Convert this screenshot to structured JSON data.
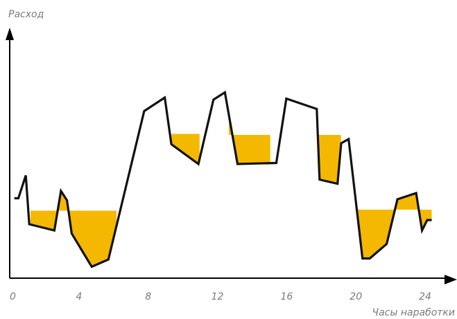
{
  "chart_data": {
    "type": "line",
    "title": "",
    "xlabel": "Часы наработки",
    "ylabel": "Расход",
    "xlim": [
      0,
      25.2
    ],
    "ylim": [
      0,
      100
    ],
    "x_ticks": [
      0,
      4,
      8,
      12,
      16,
      20,
      24
    ],
    "x_tick_labels": [
      "0",
      "4",
      "8",
      "12",
      "16",
      "20",
      "24"
    ],
    "grid": false,
    "legend": "none",
    "colors": {
      "line": "#111111",
      "fill": "#f5b800",
      "axis": "#000000",
      "text": "#7a7a7a"
    },
    "series": [
      {
        "x": [
          0.27,
          0.5,
          0.93,
          1.13,
          2.58,
          2.96,
          3.31,
          3.58,
          4.74,
          5.7,
          7.77,
          8.96,
          9.34,
          10.9,
          11.77,
          12.43,
          13.16,
          15.4,
          15.98,
          17.74,
          17.9,
          18.94,
          19.15,
          19.58,
          20.38,
          20.8,
          21.78,
          22.4,
          23.48,
          23.82,
          24.12,
          24.38
        ],
        "y": [
          38.5,
          38.5,
          49.5,
          26,
          23,
          42,
          37.5,
          21.5,
          5.5,
          9,
          80.5,
          87,
          64.5,
          55,
          86,
          89.5,
          55,
          55.5,
          86.5,
          81.5,
          47.5,
          45.5,
          65,
          67,
          9.5,
          9.5,
          16.5,
          38,
          41,
          23,
          28,
          28
        ]
      }
    ],
    "fill_bands": [
      {
        "threshold": 32.5,
        "from_x": 1.2,
        "to_x": 6.17
      },
      {
        "threshold": 69.5,
        "from_x": 9.34,
        "to_x": 10.97
      },
      {
        "threshold": 69,
        "from_x": 12.66,
        "to_x": 15.05
      },
      {
        "threshold": 69,
        "from_x": 17.76,
        "to_x": 19.14
      },
      {
        "threshold": 33,
        "from_x": 19.97,
        "to_x": 24.38
      }
    ]
  }
}
